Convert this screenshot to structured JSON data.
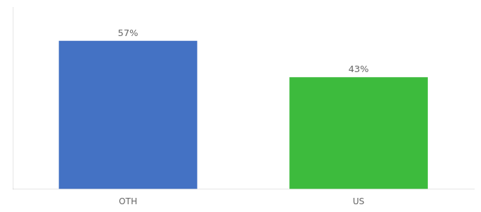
{
  "chart_data": {
    "type": "bar",
    "categories": [
      "OTH",
      "US"
    ],
    "values": [
      57,
      43
    ],
    "value_labels": [
      "57%",
      "43%"
    ],
    "colors": [
      "#4472c4",
      "#3dbb3d"
    ],
    "ylim": [
      0,
      70
    ],
    "data_labels": true,
    "tick_labels": "x",
    "grid": false
  }
}
